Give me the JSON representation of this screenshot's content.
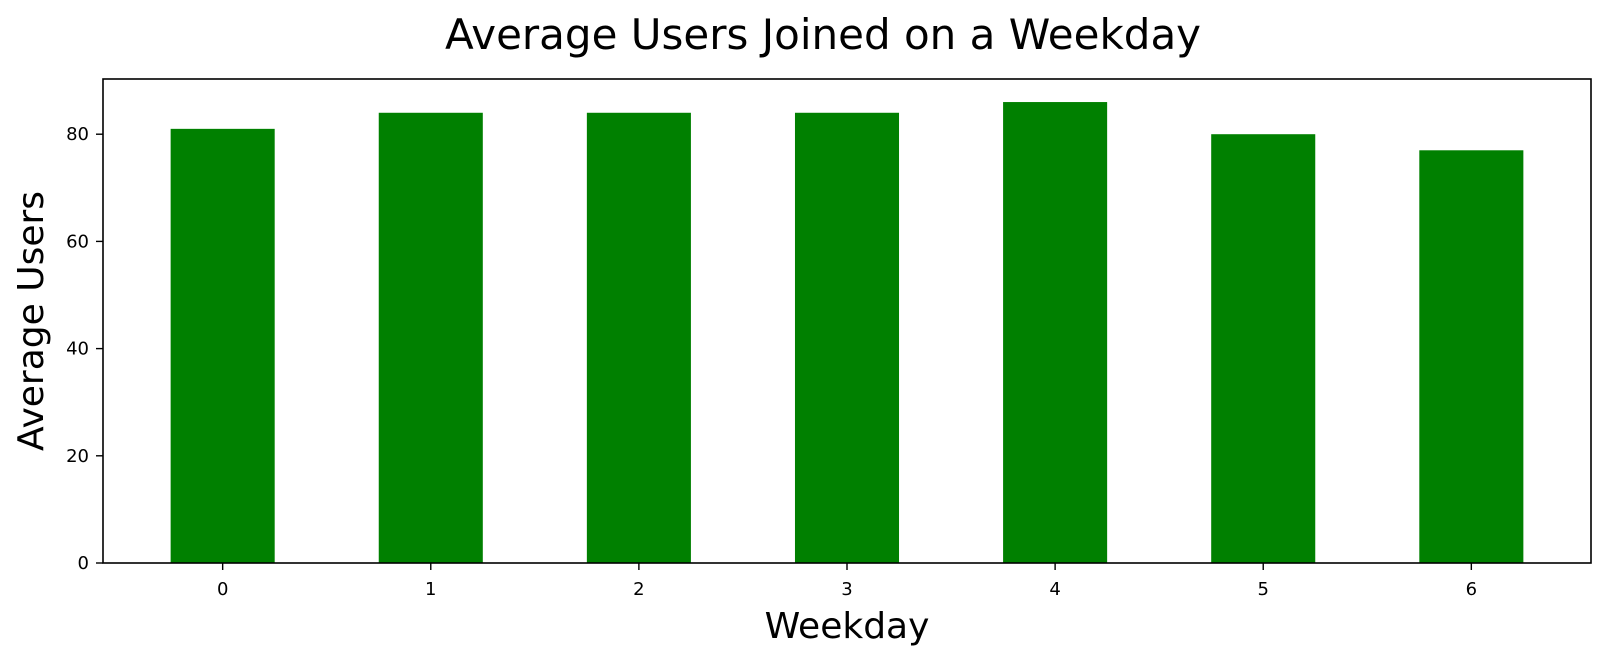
{
  "chart_data": {
    "type": "bar",
    "title": "Average Users Joined on a Weekday",
    "xlabel": "Weekday",
    "ylabel": "Average Users",
    "categories": [
      "0",
      "1",
      "2",
      "3",
      "4",
      "5",
      "6"
    ],
    "values": [
      81,
      84,
      84,
      84,
      86,
      80,
      77
    ],
    "ylim": [
      0,
      90.3
    ],
    "yticks": [
      0,
      20,
      40,
      60,
      80
    ],
    "grid": false,
    "legend": "none",
    "bar_color": "#008000"
  }
}
